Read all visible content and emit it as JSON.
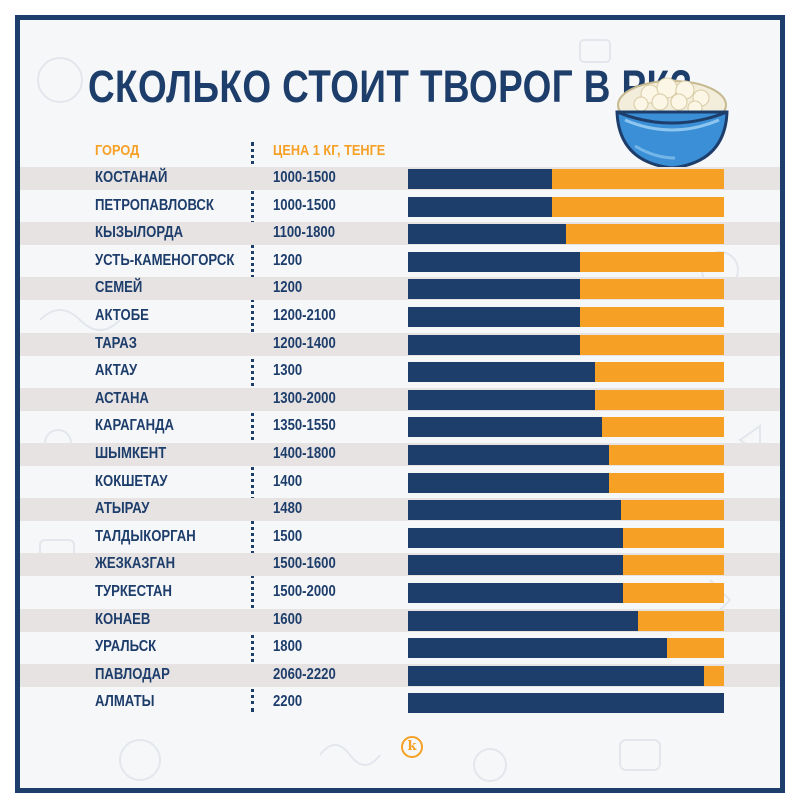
{
  "title": "СКОЛЬКО СТОИТ ТВОРОГ В РК?",
  "headers": {
    "city": "ГОРОД",
    "price": "ЦЕНА 1 КГ, ТЕНГЕ"
  },
  "logo_letter": "k",
  "colors": {
    "navy": "#1d3d6b",
    "orange": "#f6a026",
    "stripe": "#e7e3e3"
  },
  "icons": [
    "cottage-cheese-bowl-icon",
    "k-logo-icon"
  ],
  "chart_data": {
    "type": "bar",
    "orientation": "horizontal",
    "title": "СКОЛЬКО СТОИТ ТВОРОГ В РК?",
    "xlim": [
      0,
      2200
    ],
    "rows": [
      {
        "city": "КОСТАНАЙ",
        "price": "1000-1500",
        "value": 1000
      },
      {
        "city": "ПЕТРОПАВЛОВСК",
        "price": "1000-1500",
        "value": 1000
      },
      {
        "city": "КЫЗЫЛОРДА",
        "price": "1100-1800",
        "value": 1100
      },
      {
        "city": "УСТЬ-КАМЕНОГОРСК",
        "price": "1200",
        "value": 1200
      },
      {
        "city": "СЕМЕЙ",
        "price": "1200",
        "value": 1200
      },
      {
        "city": "АКТОБЕ",
        "price": "1200-2100",
        "value": 1200
      },
      {
        "city": "ТАРАЗ",
        "price": "1200-1400",
        "value": 1200
      },
      {
        "city": "АКТАУ",
        "price": "1300",
        "value": 1300
      },
      {
        "city": "АСТАНА",
        "price": "1300-2000",
        "value": 1300
      },
      {
        "city": "КАРАГАНДА",
        "price": "1350-1550",
        "value": 1350
      },
      {
        "city": "ШЫМКЕНТ",
        "price": "1400-1800",
        "value": 1400
      },
      {
        "city": "КОКШЕТАУ",
        "price": "1400",
        "value": 1400
      },
      {
        "city": "АТЫРАУ",
        "price": "1480",
        "value": 1480
      },
      {
        "city": "ТАЛДЫКОРГАН",
        "price": "1500",
        "value": 1500
      },
      {
        "city": "ЖЕЗКАЗГАН",
        "price": "1500-1600",
        "value": 1500
      },
      {
        "city": "ТУРКЕСТАН",
        "price": "1500-2000",
        "value": 1500
      },
      {
        "city": "КОНАЕВ",
        "price": "1600",
        "value": 1600
      },
      {
        "city": "УРАЛЬСК",
        "price": "1800",
        "value": 1800
      },
      {
        "city": "ПАВЛОДАР",
        "price": "2060-2220",
        "value": 2060
      },
      {
        "city": "АЛМАТЫ",
        "price": "2200",
        "value": 2200
      }
    ]
  }
}
